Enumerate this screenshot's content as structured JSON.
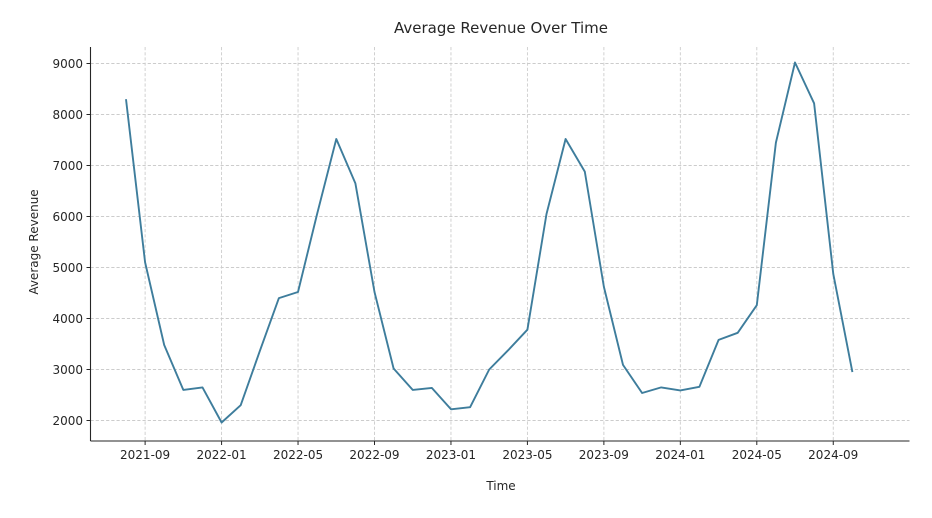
{
  "figure": {
    "title": "Average Revenue Over Time",
    "xlabel": "Time",
    "ylabel": "Average Revenue"
  },
  "chart_data": {
    "type": "line",
    "title": "Average Revenue Over Time",
    "xlabel": "Time",
    "ylabel": "Average Revenue",
    "grid": true,
    "grid_style": "dashed",
    "legend_position": "none",
    "line_color": "#3e7d9c",
    "grid_color": "#cccccc",
    "text_color": "#262626",
    "background_color": "#ffffff",
    "x": [
      "2021-08",
      "2021-09",
      "2021-10",
      "2021-11",
      "2021-12",
      "2022-01",
      "2022-02",
      "2022-03",
      "2022-04",
      "2022-05",
      "2022-06",
      "2022-07",
      "2022-08",
      "2022-09",
      "2022-10",
      "2022-11",
      "2022-12",
      "2023-01",
      "2023-02",
      "2023-03",
      "2023-04",
      "2023-05",
      "2023-06",
      "2023-07",
      "2023-08",
      "2023-09",
      "2023-10",
      "2023-11",
      "2023-12",
      "2024-01",
      "2024-02",
      "2024-03",
      "2024-04",
      "2024-05",
      "2024-06",
      "2024-07",
      "2024-08",
      "2024-09",
      "2024-10"
    ],
    "series": [
      {
        "name": "Average Revenue",
        "values": [
          8300,
          5100,
          3480,
          2600,
          2650,
          1960,
          2300,
          3360,
          4400,
          4520,
          6050,
          7520,
          6650,
          4520,
          3020,
          2600,
          2640,
          2220,
          2260,
          3000,
          3380,
          3780,
          6050,
          7520,
          6880,
          4620,
          3090,
          2540,
          2650,
          2590,
          2660,
          3580,
          3720,
          4260,
          7450,
          9020,
          8220,
          4870,
          2950
        ]
      }
    ],
    "x_tick_labels": [
      "2021-09",
      "2022-01",
      "2022-05",
      "2022-09",
      "2023-01",
      "2023-05",
      "2023-09",
      "2024-01",
      "2024-05",
      "2024-09"
    ],
    "x_tick_indices": [
      1,
      5,
      9,
      13,
      17,
      21,
      25,
      29,
      33,
      37
    ],
    "y_ticks": [
      2000,
      3000,
      4000,
      5000,
      6000,
      7000,
      8000,
      9000
    ],
    "ylim": [
      1600,
      9325
    ]
  }
}
